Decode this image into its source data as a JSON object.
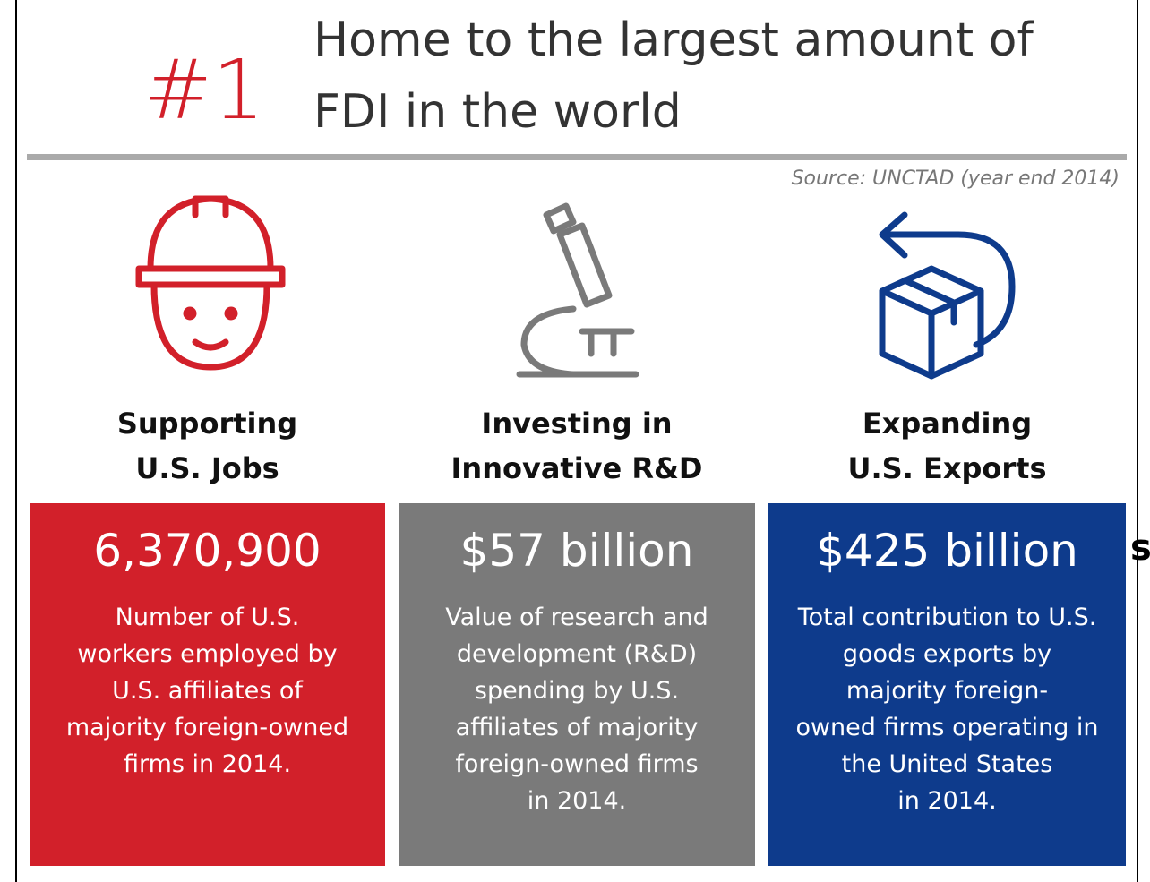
{
  "rank": "#1",
  "title_lines": [
    "Home to the largest amount of",
    "FDI in the world"
  ],
  "source": "Source:  UNCTAD (year end 2014)",
  "edge_fragment": "s",
  "columns": [
    {
      "heading_lines": [
        "Supporting",
        "U.S. Jobs"
      ],
      "figure": "6,370,900",
      "description_lines": [
        "Number of U.S.",
        "workers employed by",
        "U.S. affiliates of",
        "majority foreign-owned",
        "firms in 2014."
      ]
    },
    {
      "heading_lines": [
        "Investing in",
        "Innovative R&D"
      ],
      "figure": "$57 billion",
      "description_lines": [
        "Value of research and",
        "development (R&D)",
        "spending by U.S.",
        "affiliates of majority",
        "foreign-owned firms",
        "in 2014."
      ]
    },
    {
      "heading_lines": [
        "Expanding",
        "U.S. Exports"
      ],
      "figure": "$425 billion",
      "description_lines": [
        "Total contribution to U.S.",
        "goods exports by",
        "majority foreign-",
        "owned firms operating in",
        "the United States",
        "in 2014."
      ]
    }
  ]
}
